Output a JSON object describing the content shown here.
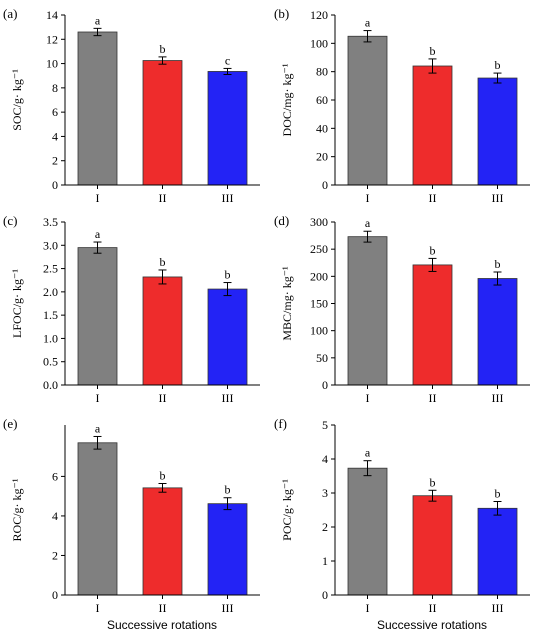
{
  "figure": {
    "x_title": "Successive rotations"
  },
  "colors": {
    "I": "#808080",
    "II": "#ee2c2c",
    "III": "#2323f5"
  },
  "chart_data": [
    {
      "type": "bar",
      "panel_label": "(a)",
      "ylabel": "SOC/g· kg⁻¹",
      "categories": [
        "I",
        "II",
        "III"
      ],
      "values": [
        12.6,
        10.25,
        9.35
      ],
      "errors": [
        0.3,
        0.3,
        0.25
      ],
      "letters": [
        "a",
        "b",
        "c"
      ],
      "ylim": [
        0,
        14
      ],
      "yticks": [
        0,
        2,
        4,
        6,
        8,
        10,
        12,
        14
      ],
      "grid": false
    },
    {
      "type": "bar",
      "panel_label": "(b)",
      "ylabel": "DOC/mg· kg⁻¹",
      "categories": [
        "I",
        "II",
        "III"
      ],
      "values": [
        105,
        84,
        75.5
      ],
      "errors": [
        4,
        5,
        3.5
      ],
      "letters": [
        "a",
        "b",
        "b"
      ],
      "ylim": [
        0,
        120
      ],
      "yticks": [
        0,
        20,
        40,
        60,
        80,
        100,
        120
      ],
      "grid": false
    },
    {
      "type": "bar",
      "panel_label": "(c)",
      "ylabel": "LFOC/g· kg⁻¹",
      "categories": [
        "I",
        "II",
        "III"
      ],
      "values": [
        2.95,
        2.32,
        2.06
      ],
      "errors": [
        0.12,
        0.15,
        0.14
      ],
      "letters": [
        "a",
        "b",
        "b"
      ],
      "ylim": [
        0,
        3.5
      ],
      "yticks": [
        "0.0",
        "0.5",
        "1.0",
        "1.5",
        "2.0",
        "2.5",
        "3.0",
        "3.5"
      ],
      "grid": false
    },
    {
      "type": "bar",
      "panel_label": "(d)",
      "ylabel": "MBC/mg· kg⁻¹",
      "categories": [
        "I",
        "II",
        "III"
      ],
      "values": [
        273,
        221,
        196
      ],
      "errors": [
        10,
        12,
        12
      ],
      "letters": [
        "a",
        "b",
        "b"
      ],
      "ylim": [
        0,
        300
      ],
      "yticks": [
        0,
        50,
        100,
        150,
        200,
        250,
        300
      ],
      "grid": false
    },
    {
      "type": "bar",
      "panel_label": "(e)",
      "ylabel": "ROC/g· kg⁻¹",
      "categories": [
        "I",
        "II",
        "III"
      ],
      "values": [
        7.7,
        5.42,
        4.62
      ],
      "errors": [
        0.32,
        0.22,
        0.3
      ],
      "letters": [
        "a",
        "b",
        "b"
      ],
      "ylim": [
        0,
        8.6
      ],
      "yticks": [
        0,
        2,
        4,
        6
      ],
      "grid": false
    },
    {
      "type": "bar",
      "panel_label": "(f)",
      "ylabel": "POC/g· kg⁻¹",
      "categories": [
        "I",
        "II",
        "III"
      ],
      "values": [
        3.73,
        2.92,
        2.55
      ],
      "errors": [
        0.22,
        0.16,
        0.2
      ],
      "letters": [
        "a",
        "b",
        "b"
      ],
      "ylim": [
        0,
        5
      ],
      "yticks": [
        0,
        1,
        2,
        3,
        4,
        5
      ],
      "grid": false
    }
  ]
}
